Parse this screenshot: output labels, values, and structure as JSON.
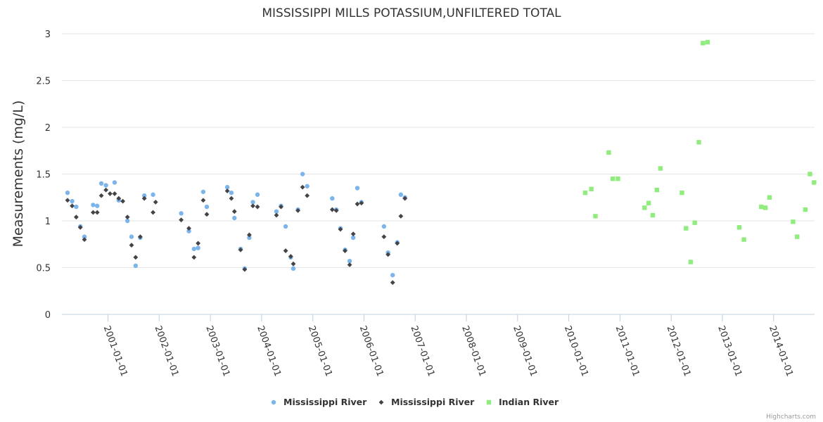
{
  "chart_data": {
    "type": "scatter",
    "title": "MISSISSIPPI MILLS POTASSIUM,UNFILTERED TOTAL",
    "ylabel": "Measurements (mg/L)",
    "xlabel": "",
    "ylim": [
      0,
      3
    ],
    "yticks": [
      {
        "value": 0,
        "label": "0"
      },
      {
        "value": 0.5,
        "label": "0.5"
      },
      {
        "value": 1,
        "label": "1"
      },
      {
        "value": 1.5,
        "label": "1.5"
      },
      {
        "value": 2,
        "label": "2"
      },
      {
        "value": 2.5,
        "label": "2.5"
      },
      {
        "value": 3,
        "label": "3"
      }
    ],
    "xlim": [
      2000.1,
      2014.8
    ],
    "xticks": [
      {
        "value": 2001.0,
        "label": "2001-01-01"
      },
      {
        "value": 2002.0,
        "label": "2002-01-01"
      },
      {
        "value": 2003.0,
        "label": "2003-01-01"
      },
      {
        "value": 2004.0,
        "label": "2004-01-01"
      },
      {
        "value": 2005.0,
        "label": "2005-01-01"
      },
      {
        "value": 2006.0,
        "label": "2006-01-01"
      },
      {
        "value": 2007.0,
        "label": "2007-01-01"
      },
      {
        "value": 2008.0,
        "label": "2008-01-01"
      },
      {
        "value": 2009.0,
        "label": "2009-01-01"
      },
      {
        "value": 2010.0,
        "label": "2010-01-01"
      },
      {
        "value": 2011.0,
        "label": "2011-01-01"
      },
      {
        "value": 2012.0,
        "label": "2012-01-01"
      },
      {
        "value": 2013.0,
        "label": "2013-01-01"
      },
      {
        "value": 2014.0,
        "label": "2014-01-01"
      }
    ],
    "legend_position": "bottom-center",
    "series": [
      {
        "name": "Mississippi River",
        "marker": "circle",
        "color": "#7cb5ec",
        "points": [
          {
            "x": 2000.21,
            "y": 1.3
          },
          {
            "x": 2000.3,
            "y": 1.21
          },
          {
            "x": 2000.38,
            "y": 1.15
          },
          {
            "x": 2000.46,
            "y": 0.94
          },
          {
            "x": 2000.54,
            "y": 0.83
          },
          {
            "x": 2000.71,
            "y": 1.17
          },
          {
            "x": 2000.79,
            "y": 1.16
          },
          {
            "x": 2000.87,
            "y": 1.4
          },
          {
            "x": 2000.96,
            "y": 1.38
          },
          {
            "x": 2001.13,
            "y": 1.41
          },
          {
            "x": 2001.21,
            "y": 1.22
          },
          {
            "x": 2001.38,
            "y": 1.0
          },
          {
            "x": 2001.46,
            "y": 0.83
          },
          {
            "x": 2001.54,
            "y": 0.52
          },
          {
            "x": 2001.63,
            "y": 0.82
          },
          {
            "x": 2001.71,
            "y": 1.27
          },
          {
            "x": 2001.88,
            "y": 1.28
          },
          {
            "x": 2002.43,
            "y": 1.08
          },
          {
            "x": 2002.58,
            "y": 0.89
          },
          {
            "x": 2002.68,
            "y": 0.7
          },
          {
            "x": 2002.76,
            "y": 0.71
          },
          {
            "x": 2002.86,
            "y": 1.31
          },
          {
            "x": 2002.93,
            "y": 1.15
          },
          {
            "x": 2003.33,
            "y": 1.36
          },
          {
            "x": 2003.41,
            "y": 1.3
          },
          {
            "x": 2003.47,
            "y": 1.03
          },
          {
            "x": 2003.59,
            "y": 0.7
          },
          {
            "x": 2003.67,
            "y": 0.49
          },
          {
            "x": 2003.76,
            "y": 0.82
          },
          {
            "x": 2003.83,
            "y": 1.2
          },
          {
            "x": 2003.92,
            "y": 1.28
          },
          {
            "x": 2004.29,
            "y": 1.1
          },
          {
            "x": 2004.38,
            "y": 1.16
          },
          {
            "x": 2004.47,
            "y": 0.94
          },
          {
            "x": 2004.57,
            "y": 0.61
          },
          {
            "x": 2004.62,
            "y": 0.49
          },
          {
            "x": 2004.71,
            "y": 1.12
          },
          {
            "x": 2004.8,
            "y": 1.5
          },
          {
            "x": 2004.89,
            "y": 1.37
          },
          {
            "x": 2005.38,
            "y": 1.24
          },
          {
            "x": 2005.46,
            "y": 1.12
          },
          {
            "x": 2005.54,
            "y": 0.92
          },
          {
            "x": 2005.63,
            "y": 0.69
          },
          {
            "x": 2005.72,
            "y": 0.57
          },
          {
            "x": 2005.79,
            "y": 0.82
          },
          {
            "x": 2005.87,
            "y": 1.35
          },
          {
            "x": 2005.95,
            "y": 1.2
          },
          {
            "x": 2006.39,
            "y": 0.94
          },
          {
            "x": 2006.47,
            "y": 0.66
          },
          {
            "x": 2006.56,
            "y": 0.42
          },
          {
            "x": 2006.65,
            "y": 0.77
          },
          {
            "x": 2006.72,
            "y": 1.28
          },
          {
            "x": 2006.8,
            "y": 1.25
          }
        ]
      },
      {
        "name": "Mississippi River",
        "marker": "diamond",
        "color": "#434348",
        "points": [
          {
            "x": 2000.21,
            "y": 1.22
          },
          {
            "x": 2000.3,
            "y": 1.16
          },
          {
            "x": 2000.38,
            "y": 1.04
          },
          {
            "x": 2000.46,
            "y": 0.93
          },
          {
            "x": 2000.54,
            "y": 0.8
          },
          {
            "x": 2000.71,
            "y": 1.09
          },
          {
            "x": 2000.79,
            "y": 1.09
          },
          {
            "x": 2000.87,
            "y": 1.27
          },
          {
            "x": 2000.96,
            "y": 1.33
          },
          {
            "x": 2001.04,
            "y": 1.29
          },
          {
            "x": 2001.13,
            "y": 1.29
          },
          {
            "x": 2001.21,
            "y": 1.24
          },
          {
            "x": 2001.29,
            "y": 1.21
          },
          {
            "x": 2001.38,
            "y": 1.04
          },
          {
            "x": 2001.46,
            "y": 0.74
          },
          {
            "x": 2001.54,
            "y": 0.61
          },
          {
            "x": 2001.63,
            "y": 0.83
          },
          {
            "x": 2001.71,
            "y": 1.24
          },
          {
            "x": 2001.88,
            "y": 1.09
          },
          {
            "x": 2001.93,
            "y": 1.2
          },
          {
            "x": 2002.43,
            "y": 1.01
          },
          {
            "x": 2002.58,
            "y": 0.92
          },
          {
            "x": 2002.68,
            "y": 0.61
          },
          {
            "x": 2002.76,
            "y": 0.76
          },
          {
            "x": 2002.86,
            "y": 1.22
          },
          {
            "x": 2002.93,
            "y": 1.07
          },
          {
            "x": 2003.33,
            "y": 1.32
          },
          {
            "x": 2003.41,
            "y": 1.24
          },
          {
            "x": 2003.47,
            "y": 1.1
          },
          {
            "x": 2003.59,
            "y": 0.69
          },
          {
            "x": 2003.67,
            "y": 0.48
          },
          {
            "x": 2003.76,
            "y": 0.85
          },
          {
            "x": 2003.83,
            "y": 1.16
          },
          {
            "x": 2003.92,
            "y": 1.15
          },
          {
            "x": 2004.29,
            "y": 1.06
          },
          {
            "x": 2004.38,
            "y": 1.15
          },
          {
            "x": 2004.47,
            "y": 0.68
          },
          {
            "x": 2004.57,
            "y": 0.62
          },
          {
            "x": 2004.62,
            "y": 0.54
          },
          {
            "x": 2004.71,
            "y": 1.11
          },
          {
            "x": 2004.8,
            "y": 1.36
          },
          {
            "x": 2004.89,
            "y": 1.27
          },
          {
            "x": 2005.38,
            "y": 1.12
          },
          {
            "x": 2005.46,
            "y": 1.11
          },
          {
            "x": 2005.54,
            "y": 0.91
          },
          {
            "x": 2005.63,
            "y": 0.68
          },
          {
            "x": 2005.72,
            "y": 0.53
          },
          {
            "x": 2005.79,
            "y": 0.86
          },
          {
            "x": 2005.87,
            "y": 1.18
          },
          {
            "x": 2005.95,
            "y": 1.19
          },
          {
            "x": 2006.39,
            "y": 0.83
          },
          {
            "x": 2006.47,
            "y": 0.64
          },
          {
            "x": 2006.56,
            "y": 0.34
          },
          {
            "x": 2006.65,
            "y": 0.76
          },
          {
            "x": 2006.72,
            "y": 1.05
          },
          {
            "x": 2006.8,
            "y": 1.24
          }
        ]
      },
      {
        "name": "Indian River",
        "marker": "square",
        "color": "#90ed7d",
        "points": [
          {
            "x": 2010.32,
            "y": 1.3
          },
          {
            "x": 2010.44,
            "y": 1.34
          },
          {
            "x": 2010.52,
            "y": 1.05
          },
          {
            "x": 2010.78,
            "y": 1.73
          },
          {
            "x": 2010.86,
            "y": 1.45
          },
          {
            "x": 2010.96,
            "y": 1.45
          },
          {
            "x": 2011.48,
            "y": 1.14
          },
          {
            "x": 2011.56,
            "y": 1.19
          },
          {
            "x": 2011.64,
            "y": 1.06
          },
          {
            "x": 2011.72,
            "y": 1.33
          },
          {
            "x": 2011.79,
            "y": 1.56
          },
          {
            "x": 2012.21,
            "y": 1.3
          },
          {
            "x": 2012.29,
            "y": 0.92
          },
          {
            "x": 2012.38,
            "y": 0.56
          },
          {
            "x": 2012.46,
            "y": 0.98
          },
          {
            "x": 2012.54,
            "y": 1.84
          },
          {
            "x": 2012.62,
            "y": 2.9
          },
          {
            "x": 2012.71,
            "y": 2.91
          },
          {
            "x": 2013.33,
            "y": 0.93
          },
          {
            "x": 2013.42,
            "y": 0.8
          },
          {
            "x": 2013.76,
            "y": 1.15
          },
          {
            "x": 2013.84,
            "y": 1.14
          },
          {
            "x": 2013.92,
            "y": 1.25
          },
          {
            "x": 2014.38,
            "y": 0.99
          },
          {
            "x": 2014.46,
            "y": 0.83
          },
          {
            "x": 2014.62,
            "y": 1.12
          },
          {
            "x": 2014.71,
            "y": 1.5
          },
          {
            "x": 2014.79,
            "y": 1.41
          }
        ]
      }
    ]
  },
  "credits": "Highcharts.com"
}
